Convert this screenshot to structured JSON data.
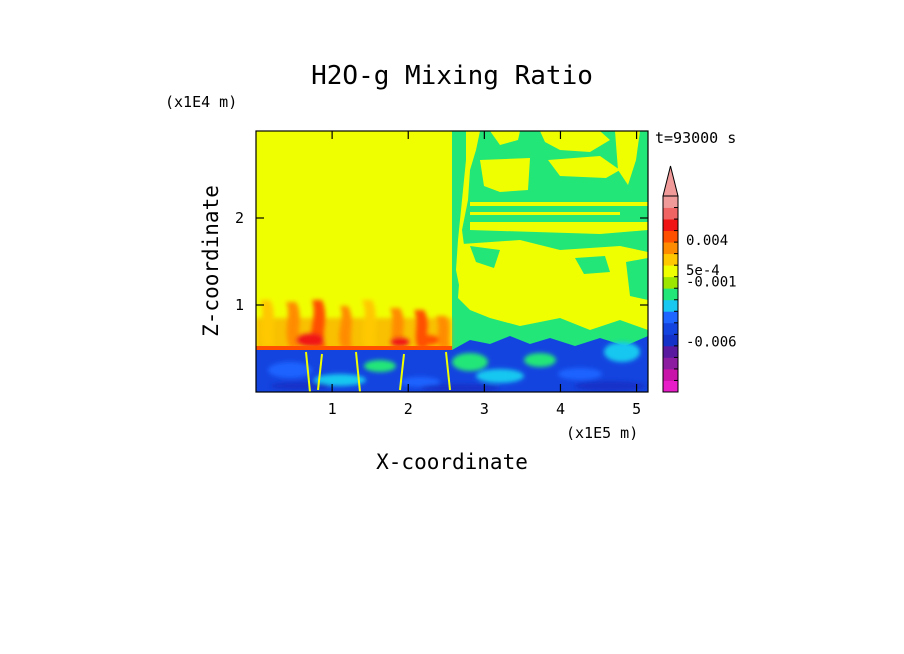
{
  "chart_data": {
    "type": "heatmap",
    "title": "H2O-g Mixing Ratio",
    "xlabel": "X-coordinate",
    "ylabel": "Z-coordinate",
    "x_unit": "(x1E5 m)",
    "y_unit": "(x1E4 m)",
    "time_label": "t=93000 s",
    "x_ticks": [
      "1",
      "2",
      "3",
      "4",
      "5"
    ],
    "y_ticks": [
      "1",
      "2"
    ],
    "xlim": [
      0,
      5.15
    ],
    "ylim": [
      0,
      3.0
    ],
    "colorbar": {
      "colors": [
        "#e81ec8",
        "#c814a8",
        "#8c1ca0",
        "#5a1aa0",
        "#1432c8",
        "#1444e0",
        "#1e64ff",
        "#18c8f0",
        "#22e678",
        "#9ce600",
        "#f0ff00",
        "#ffc800",
        "#ff8c00",
        "#ff5000",
        "#f01414",
        "#f06464",
        "#f09a9a"
      ],
      "extend_color": "#f09a9a",
      "tick_labels": [
        {
          "label": "0.004",
          "level": 13.2
        },
        {
          "label": "5e-4",
          "level": 10.6
        },
        {
          "label": "-0.001",
          "level": 9.6
        },
        {
          "label": "-0.006",
          "level": 4.4
        }
      ]
    },
    "field_regions": [
      {
        "region": "x 0–2.55, z 0.55–3.0",
        "value_class": "yellow (~0)"
      },
      {
        "region": "x 2.55–5.15, z 0.55–3.0",
        "value_class": "mixed green / yellow"
      },
      {
        "region": "x 0–2.55, z 0.5–1.05",
        "value_class": "orange / red plumes"
      },
      {
        "region": "x 0–5.15, z 0–0.55",
        "value_class": "blue / dark blue / cyan (negative)"
      }
    ]
  }
}
